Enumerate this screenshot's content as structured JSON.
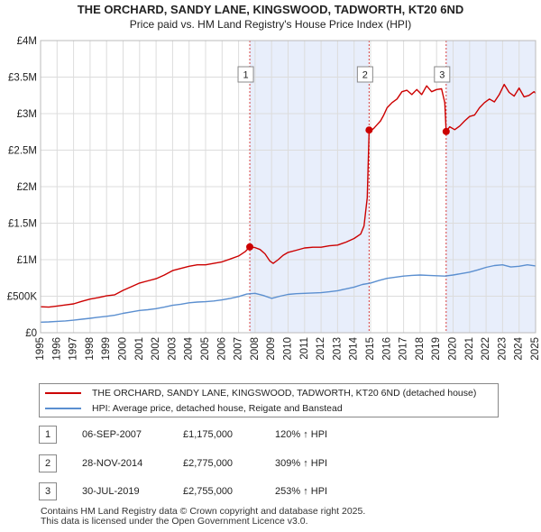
{
  "title": "THE ORCHARD, SANDY LANE, KINGSWOOD, TADWORTH, KT20 6ND",
  "subtitle": "Price paid vs. HM Land Registry's House Price Index (HPI)",
  "colors": {
    "property": "#cc0000",
    "hpi": "#5b8fd0",
    "shade": "#e8eefb",
    "grid": "#dcdcdc"
  },
  "chart_data": {
    "type": "line",
    "xlim": [
      1995.0,
      2025.0
    ],
    "ylim": [
      0,
      4000000
    ],
    "y_ticks": [
      0,
      500000,
      1000000,
      1500000,
      2000000,
      2500000,
      3000000,
      3500000,
      4000000
    ],
    "y_tick_labels": [
      "£0",
      "£500K",
      "£1M",
      "£1.5M",
      "£2M",
      "£2.5M",
      "£3M",
      "£3.5M",
      "£4M"
    ],
    "x_ticks": [
      1995,
      1996,
      1997,
      1998,
      1999,
      2000,
      2001,
      2002,
      2003,
      2004,
      2005,
      2006,
      2007,
      2008,
      2009,
      2010,
      2011,
      2012,
      2013,
      2014,
      2015,
      2016,
      2017,
      2018,
      2019,
      2020,
      2021,
      2022,
      2023,
      2024,
      2025
    ],
    "x_tick_labels": [
      "1995",
      "1996",
      "1997",
      "1998",
      "1999",
      "2000",
      "2001",
      "2002",
      "2003",
      "2004",
      "2005",
      "2006",
      "2007",
      "2008",
      "2009",
      "2010",
      "2011",
      "2012",
      "2013",
      "2014",
      "2015",
      "2016",
      "2017",
      "2018",
      "2019",
      "2020",
      "2021",
      "2022",
      "2023",
      "2024",
      "2025"
    ],
    "series": [
      {
        "name": "THE ORCHARD, SANDY LANE, KINGSWOOD, TADWORTH, KT20 6ND (detached house)",
        "x": [
          1995.0,
          1995.5,
          1996.0,
          1996.5,
          1997.0,
          1997.5,
          1998.0,
          1998.5,
          1999.0,
          1999.5,
          2000.0,
          2000.5,
          2001.0,
          2001.5,
          2002.0,
          2002.5,
          2003.0,
          2003.5,
          2004.0,
          2004.5,
          2005.0,
          2005.5,
          2006.0,
          2006.5,
          2007.0,
          2007.4,
          2007.68,
          2008.0,
          2008.3,
          2008.6,
          2008.9,
          2009.1,
          2009.4,
          2009.7,
          2010.0,
          2010.5,
          2011.0,
          2011.5,
          2012.0,
          2012.5,
          2013.0,
          2013.5,
          2014.0,
          2014.4,
          2014.6,
          2014.8,
          2014.91,
          2015.0,
          2015.2,
          2015.4,
          2015.6,
          2015.8,
          2016.0,
          2016.3,
          2016.6,
          2016.9,
          2017.2,
          2017.5,
          2017.8,
          2018.1,
          2018.4,
          2018.7,
          2019.0,
          2019.3,
          2019.5,
          2019.58,
          2019.8,
          2020.1,
          2020.4,
          2020.7,
          2021.0,
          2021.3,
          2021.6,
          2021.9,
          2022.2,
          2022.5,
          2022.8,
          2023.1,
          2023.4,
          2023.7,
          2024.0,
          2024.3,
          2024.6,
          2024.9,
          2025.0
        ],
        "y": [
          355000,
          350000,
          365000,
          380000,
          395000,
          430000,
          460000,
          480000,
          505000,
          520000,
          580000,
          630000,
          680000,
          710000,
          740000,
          790000,
          850000,
          880000,
          910000,
          930000,
          930000,
          950000,
          970000,
          1010000,
          1050000,
          1110000,
          1175000,
          1165000,
          1140000,
          1080000,
          980000,
          950000,
          1000000,
          1060000,
          1100000,
          1130000,
          1160000,
          1170000,
          1170000,
          1190000,
          1200000,
          1240000,
          1290000,
          1350000,
          1460000,
          1850000,
          2775000,
          2760000,
          2800000,
          2850000,
          2900000,
          2980000,
          3080000,
          3150000,
          3200000,
          3300000,
          3320000,
          3260000,
          3330000,
          3260000,
          3380000,
          3300000,
          3330000,
          3340000,
          3150000,
          2755000,
          2820000,
          2780000,
          2830000,
          2900000,
          2960000,
          2980000,
          3080000,
          3150000,
          3200000,
          3160000,
          3260000,
          3400000,
          3290000,
          3240000,
          3350000,
          3230000,
          3250000,
          3300000,
          3280000
        ]
      },
      {
        "name": "HPI: Average price, detached house, Reigate and Banstead",
        "x": [
          1995.0,
          1995.5,
          1996.0,
          1996.5,
          1997.0,
          1997.5,
          1998.0,
          1998.5,
          1999.0,
          1999.5,
          2000.0,
          2000.5,
          2001.0,
          2001.5,
          2002.0,
          2002.5,
          2003.0,
          2003.5,
          2004.0,
          2004.5,
          2005.0,
          2005.5,
          2006.0,
          2006.5,
          2007.0,
          2007.5,
          2008.0,
          2008.5,
          2009.0,
          2009.5,
          2010.0,
          2010.5,
          2011.0,
          2011.5,
          2012.0,
          2012.5,
          2013.0,
          2013.5,
          2014.0,
          2014.5,
          2015.0,
          2015.5,
          2016.0,
          2016.5,
          2017.0,
          2017.5,
          2018.0,
          2018.5,
          2019.0,
          2019.5,
          2020.0,
          2020.5,
          2021.0,
          2021.5,
          2022.0,
          2022.5,
          2023.0,
          2023.5,
          2024.0,
          2024.5,
          2025.0
        ],
        "y": [
          145000,
          148000,
          155000,
          162000,
          172000,
          185000,
          198000,
          212000,
          225000,
          240000,
          265000,
          285000,
          305000,
          315000,
          330000,
          350000,
          375000,
          390000,
          410000,
          420000,
          425000,
          435000,
          450000,
          470000,
          495000,
          530000,
          540000,
          510000,
          470000,
          500000,
          525000,
          535000,
          540000,
          545000,
          548000,
          560000,
          575000,
          600000,
          625000,
          660000,
          680000,
          715000,
          745000,
          760000,
          775000,
          785000,
          790000,
          785000,
          780000,
          775000,
          790000,
          810000,
          830000,
          860000,
          895000,
          920000,
          930000,
          900000,
          910000,
          930000,
          915000
        ]
      }
    ],
    "sales": [
      {
        "label": "1",
        "x": 2007.68,
        "y": 1175000
      },
      {
        "label": "2",
        "x": 2014.91,
        "y": 2775000
      },
      {
        "label": "3",
        "x": 2019.58,
        "y": 2755000
      }
    ]
  },
  "legend": {
    "property_label": "THE ORCHARD, SANDY LANE, KINGSWOOD, TADWORTH, KT20 6ND (detached house)",
    "hpi_label": "HPI: Average price, detached house, Reigate and Banstead"
  },
  "transactions": [
    {
      "num": "1",
      "date": "06-SEP-2007",
      "price": "£1,175,000",
      "pct": "120% ↑ HPI"
    },
    {
      "num": "2",
      "date": "28-NOV-2014",
      "price": "£2,775,000",
      "pct": "309% ↑ HPI"
    },
    {
      "num": "3",
      "date": "30-JUL-2019",
      "price": "£2,755,000",
      "pct": "253% ↑ HPI"
    }
  ],
  "footer": {
    "line1": "Contains HM Land Registry data © Crown copyright and database right 2025.",
    "line2": "This data is licensed under the Open Government Licence v3.0."
  }
}
